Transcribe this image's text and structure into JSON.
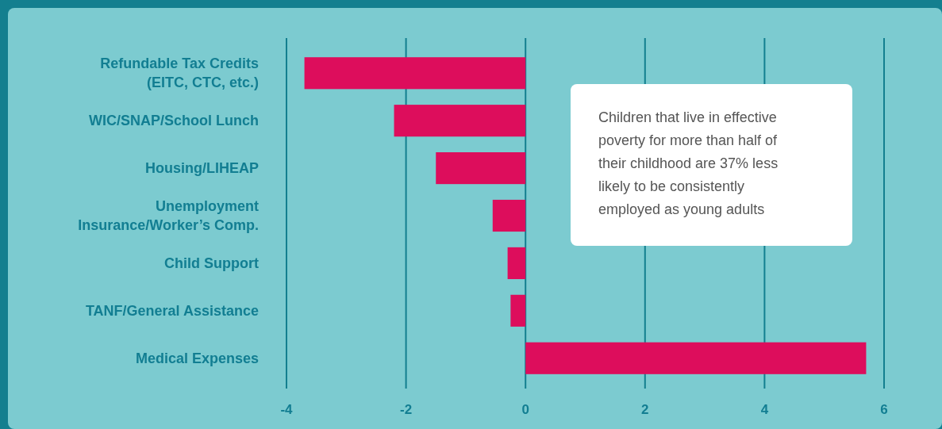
{
  "chart_data": {
    "type": "bar",
    "orientation": "horizontal",
    "categories": [
      "Refundable Tax Credits (EITC, CTC, etc.)",
      "WIC/SNAP/School Lunch",
      "Housing/LIHEAP",
      "Unemployment Insurance/Worker’s Comp.",
      "Child Support",
      "TANF/General Assistance",
      "Medical Expenses"
    ],
    "series": [
      {
        "color": "#dd0d5c",
        "values": [
          -3.7,
          -2.2,
          -1.5,
          -0.55,
          -0.3,
          -0.25,
          5.7
        ]
      }
    ],
    "xlim": [
      -4,
      6
    ],
    "xticks": [
      -4,
      -2,
      0,
      2,
      4,
      6
    ],
    "grid": "x",
    "annotations": [
      "Children that live in effective poverty for more than half of their childhood are 37% less likely to be consistently employed as young adults"
    ]
  }
}
